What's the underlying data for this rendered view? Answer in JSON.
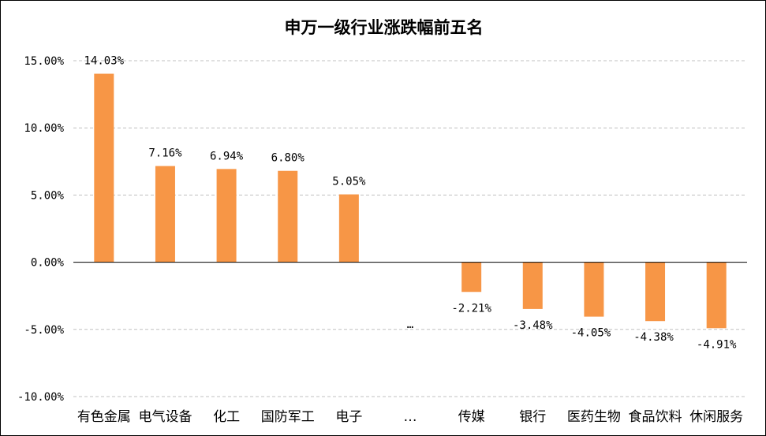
{
  "chart_data": {
    "type": "bar",
    "title": "申万一级行业涨跌幅前五名",
    "categories": [
      "有色金属",
      "电气设备",
      "化工",
      "国防军工",
      "电子",
      "…",
      "传媒",
      "银行",
      "医药生物",
      "食品饮料",
      "休闲服务"
    ],
    "values": [
      14.03,
      7.16,
      6.94,
      6.8,
      5.05,
      null,
      -2.21,
      -3.48,
      -4.05,
      -4.38,
      -4.91
    ],
    "data_labels": [
      "14.03%",
      "7.16%",
      "6.94%",
      "6.80%",
      "5.05%",
      "…",
      "-2.21%",
      "-3.48%",
      "-4.05%",
      "-4.38%",
      "-4.91%"
    ],
    "ylim": [
      -10,
      15
    ],
    "yticks": [
      15,
      10,
      5,
      0,
      -5,
      -10
    ],
    "ytick_labels": [
      "15.00%",
      "10.00%",
      "5.00%",
      "0.00%",
      "-5.00%",
      "-10.00%"
    ],
    "xlabel": "",
    "ylabel": "",
    "grid": "horizontal-dashed",
    "bar_color": "#F79646",
    "axis_color": "#000000",
    "grid_color": "#C0C0C0"
  }
}
